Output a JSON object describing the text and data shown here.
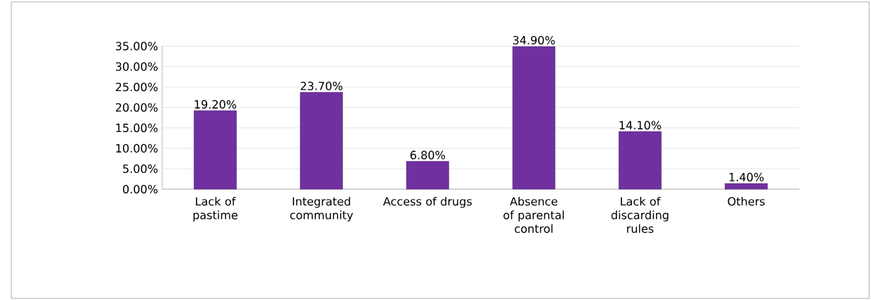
{
  "chart_data": {
    "type": "bar",
    "categories": [
      "Lack of pastime",
      "Integrated community",
      "Access of drugs",
      "Absence of parental control",
      "Lack of discarding rules",
      "Others"
    ],
    "values": [
      19.2,
      23.7,
      6.8,
      34.9,
      14.1,
      1.4
    ],
    "value_labels": [
      "19.20%",
      "23.70%",
      "6.80%",
      "34.90%",
      "14.10%",
      "1.40%"
    ],
    "color": "#7030a0",
    "ylim": [
      0,
      35
    ],
    "yticks": [
      {
        "value": 0,
        "label": "0.00%"
      },
      {
        "value": 5,
        "label": "5.00%"
      },
      {
        "value": 10,
        "label": "10.00%"
      },
      {
        "value": 15,
        "label": "15.00%"
      },
      {
        "value": 20,
        "label": "20.00%"
      },
      {
        "value": 25,
        "label": "25.00%"
      },
      {
        "value": 30,
        "label": "30.00%"
      },
      {
        "value": 35,
        "label": "35.00%"
      }
    ],
    "grid": "y"
  }
}
